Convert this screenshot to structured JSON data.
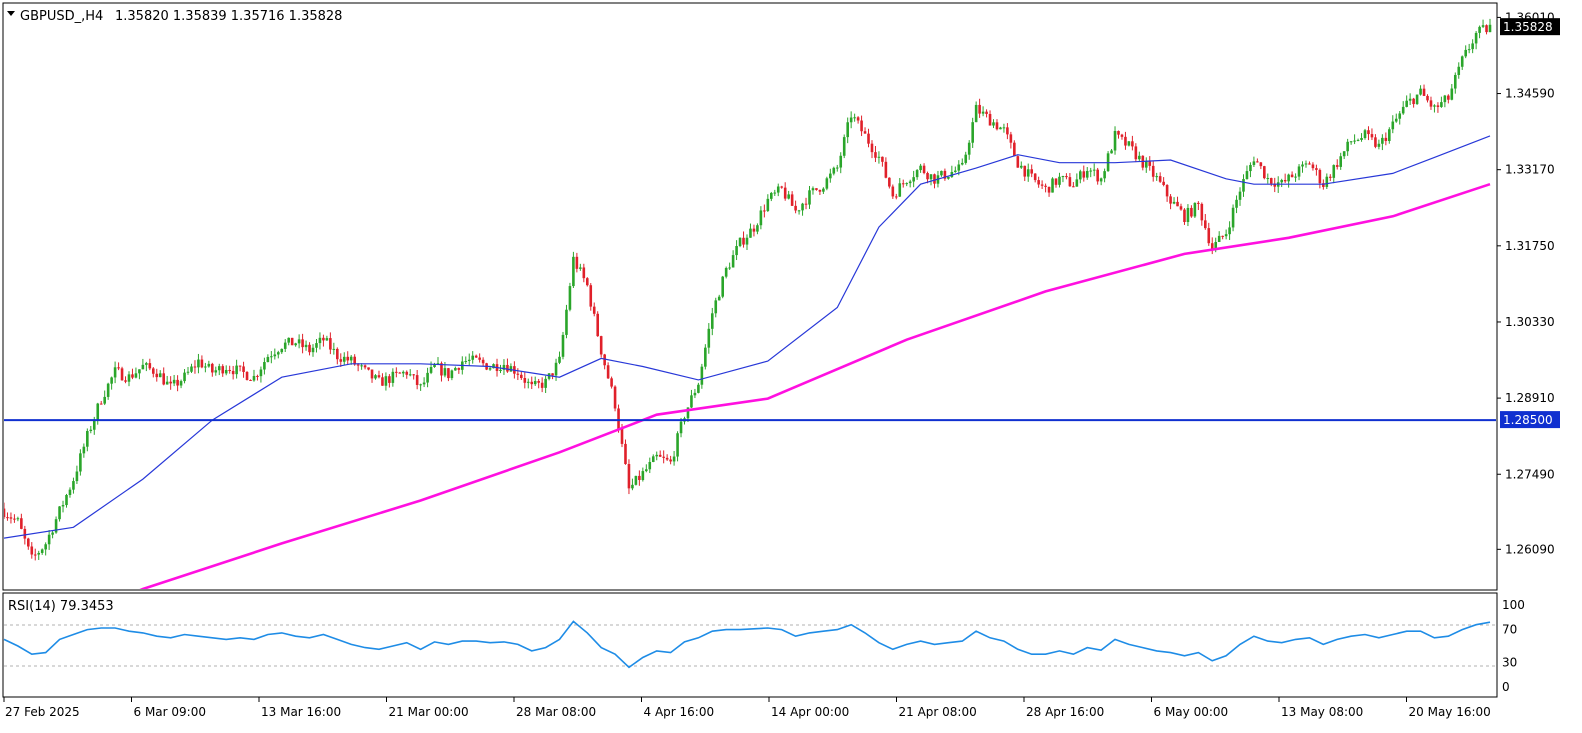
{
  "header": {
    "symbol": "GBPUSD_,H4",
    "ohlc": "1.35820 1.35839 1.35716 1.35828"
  },
  "rsi_header": {
    "label": "RSI(14) 79.3453"
  },
  "colors": {
    "bull_candle": "#2aa52a",
    "bear_candle": "#e0202a",
    "ma_fast": "#2838d8",
    "ma_slow": "#ff10e0",
    "support_line": "#1030d0",
    "rsi_line": "#1e8ce6",
    "price_tag_bg": "#000000",
    "level_tag_bg": "#1030d0"
  },
  "chart_data": [
    {
      "type": "candlestick",
      "symbol": "GBPUSD_",
      "timeframe": "H4",
      "y_ticks": [
        "1.36010",
        "1.34590",
        "1.33170",
        "1.31750",
        "1.30330",
        "1.28910",
        "1.27490",
        "1.26090"
      ],
      "ylim": [
        1.2535,
        1.3626
      ],
      "x_tick_labels": [
        "27 Feb 2025",
        "6 Mar 09:00",
        "13 Mar 16:00",
        "21 Mar 00:00",
        "28 Mar 08:00",
        "4 Apr 16:00",
        "14 Apr 00:00",
        "21 Apr 08:00",
        "28 Apr 16:00",
        "6 May 00:00",
        "13 May 08:00",
        "20 May 16:00"
      ],
      "current_price_label": "1.35828",
      "horizontal_level": {
        "value": 1.285,
        "label": "1.28500"
      },
      "close_path": [
        [
          0,
          1.268
        ],
        [
          4,
          1.266
        ],
        [
          8,
          1.259
        ],
        [
          12,
          1.262
        ],
        [
          16,
          1.268
        ],
        [
          20,
          1.274
        ],
        [
          24,
          1.282
        ],
        [
          28,
          1.289
        ],
        [
          32,
          1.294
        ],
        [
          36,
          1.293
        ],
        [
          40,
          1.295
        ],
        [
          44,
          1.294
        ],
        [
          48,
          1.291
        ],
        [
          52,
          1.293
        ],
        [
          56,
          1.296
        ],
        [
          60,
          1.294
        ],
        [
          64,
          1.295
        ],
        [
          68,
          1.294
        ],
        [
          72,
          1.293
        ],
        [
          76,
          1.297
        ],
        [
          80,
          1.299
        ],
        [
          84,
          1.2995
        ],
        [
          88,
          1.298
        ],
        [
          92,
          1.3
        ],
        [
          96,
          1.297
        ],
        [
          100,
          1.296
        ],
        [
          104,
          1.294
        ],
        [
          108,
          1.292
        ],
        [
          112,
          1.293
        ],
        [
          116,
          1.294
        ],
        [
          120,
          1.291
        ],
        [
          124,
          1.295
        ],
        [
          128,
          1.2935
        ],
        [
          132,
          1.296
        ],
        [
          136,
          1.296
        ],
        [
          140,
          1.295
        ],
        [
          144,
          1.2955
        ],
        [
          148,
          1.294
        ],
        [
          152,
          1.291
        ],
        [
          156,
          1.292
        ],
        [
          160,
          1.296
        ],
        [
          164,
          1.315
        ],
        [
          168,
          1.31
        ],
        [
          172,
          1.298
        ],
        [
          176,
          1.288
        ],
        [
          180,
          1.272
        ],
        [
          184,
          1.275
        ],
        [
          188,
          1.278
        ],
        [
          192,
          1.277
        ],
        [
          196,
          1.286
        ],
        [
          200,
          1.292
        ],
        [
          204,
          1.305
        ],
        [
          208,
          1.313
        ],
        [
          212,
          1.318
        ],
        [
          216,
          1.321
        ],
        [
          220,
          1.326
        ],
        [
          224,
          1.328
        ],
        [
          228,
          1.324
        ],
        [
          232,
          1.327
        ],
        [
          236,
          1.329
        ],
        [
          240,
          1.332
        ],
        [
          244,
          1.342
        ],
        [
          248,
          1.338
        ],
        [
          252,
          1.334
        ],
        [
          256,
          1.327
        ],
        [
          260,
          1.33
        ],
        [
          264,
          1.332
        ],
        [
          268,
          1.33
        ],
        [
          272,
          1.331
        ],
        [
          276,
          1.332
        ],
        [
          280,
          1.343
        ],
        [
          284,
          1.341
        ],
        [
          288,
          1.339
        ],
        [
          292,
          1.333
        ],
        [
          296,
          1.33
        ],
        [
          300,
          1.328
        ],
        [
          304,
          1.33
        ],
        [
          308,
          1.329
        ],
        [
          312,
          1.332
        ],
        [
          316,
          1.33
        ],
        [
          320,
          1.338
        ],
        [
          324,
          1.336
        ],
        [
          328,
          1.333
        ],
        [
          332,
          1.33
        ],
        [
          336,
          1.326
        ],
        [
          340,
          1.323
        ],
        [
          344,
          1.325
        ],
        [
          348,
          1.317
        ],
        [
          352,
          1.32
        ],
        [
          356,
          1.328
        ],
        [
          360,
          1.334
        ],
        [
          364,
          1.33
        ],
        [
          368,
          1.329
        ],
        [
          372,
          1.331
        ],
        [
          376,
          1.333
        ],
        [
          380,
          1.329
        ],
        [
          384,
          1.333
        ],
        [
          388,
          1.337
        ],
        [
          392,
          1.338
        ],
        [
          396,
          1.336
        ],
        [
          400,
          1.34
        ],
        [
          404,
          1.344
        ],
        [
          408,
          1.346
        ],
        [
          412,
          1.343
        ],
        [
          416,
          1.345
        ],
        [
          420,
          1.352
        ],
        [
          424,
          1.357
        ],
        [
          428,
          1.3583
        ]
      ],
      "series": [
        {
          "name": "",
          "type": "line",
          "values": [
            [
              0,
              1.263
            ],
            [
              20,
              1.265
            ],
            [
              40,
              1.274
            ],
            [
              60,
              1.285
            ],
            [
              80,
              1.293
            ],
            [
              100,
              1.2955
            ],
            [
              120,
              1.2955
            ],
            [
              140,
              1.295
            ],
            [
              160,
              1.293
            ],
            [
              172,
              1.2965
            ],
            [
              184,
              1.295
            ],
            [
              200,
              1.2925
            ],
            [
              220,
              1.296
            ],
            [
              240,
              1.306
            ],
            [
              252,
              1.321
            ],
            [
              264,
              1.329
            ],
            [
              280,
              1.332
            ],
            [
              292,
              1.3345
            ],
            [
              304,
              1.333
            ],
            [
              320,
              1.333
            ],
            [
              336,
              1.3335
            ],
            [
              352,
              1.33
            ],
            [
              360,
              1.329
            ],
            [
              380,
              1.329
            ],
            [
              400,
              1.331
            ],
            [
              412,
              1.334
            ],
            [
              428,
              1.338
            ]
          ]
        },
        {
          "name": "",
          "type": "line",
          "values": [
            [
              0,
              1.243
            ],
            [
              40,
              1.2535
            ],
            [
              80,
              1.262
            ],
            [
              120,
              1.27
            ],
            [
              160,
              1.279
            ],
            [
              188,
              1.286
            ],
            [
              220,
              1.289
            ],
            [
              260,
              1.3
            ],
            [
              300,
              1.309
            ],
            [
              340,
              1.316
            ],
            [
              370,
              1.319
            ],
            [
              400,
              1.323
            ],
            [
              428,
              1.329
            ]
          ]
        }
      ]
    },
    {
      "type": "line",
      "title": "RSI(14) 79.3453",
      "y_ticks": [
        "100",
        "70",
        "30",
        "0"
      ],
      "ylim": [
        0,
        100
      ],
      "levels": [
        70,
        30
      ],
      "values": [
        [
          0,
          58
        ],
        [
          4,
          50
        ],
        [
          8,
          40
        ],
        [
          12,
          42
        ],
        [
          16,
          58
        ],
        [
          20,
          64
        ],
        [
          24,
          70
        ],
        [
          28,
          72
        ],
        [
          32,
          72
        ],
        [
          36,
          68
        ],
        [
          40,
          66
        ],
        [
          44,
          62
        ],
        [
          48,
          60
        ],
        [
          52,
          64
        ],
        [
          56,
          62
        ],
        [
          60,
          60
        ],
        [
          64,
          58
        ],
        [
          68,
          60
        ],
        [
          72,
          58
        ],
        [
          76,
          64
        ],
        [
          80,
          66
        ],
        [
          84,
          62
        ],
        [
          88,
          60
        ],
        [
          92,
          64
        ],
        [
          96,
          58
        ],
        [
          100,
          52
        ],
        [
          104,
          48
        ],
        [
          108,
          46
        ],
        [
          112,
          50
        ],
        [
          116,
          54
        ],
        [
          120,
          46
        ],
        [
          124,
          55
        ],
        [
          128,
          52
        ],
        [
          132,
          56
        ],
        [
          136,
          56
        ],
        [
          140,
          54
        ],
        [
          144,
          55
        ],
        [
          148,
          52
        ],
        [
          152,
          44
        ],
        [
          156,
          48
        ],
        [
          160,
          58
        ],
        [
          164,
          80
        ],
        [
          168,
          66
        ],
        [
          172,
          48
        ],
        [
          176,
          40
        ],
        [
          180,
          24
        ],
        [
          184,
          36
        ],
        [
          188,
          44
        ],
        [
          192,
          42
        ],
        [
          196,
          55
        ],
        [
          200,
          60
        ],
        [
          204,
          68
        ],
        [
          208,
          70
        ],
        [
          212,
          70
        ],
        [
          216,
          71
        ],
        [
          220,
          72
        ],
        [
          224,
          70
        ],
        [
          228,
          62
        ],
        [
          232,
          66
        ],
        [
          236,
          68
        ],
        [
          240,
          70
        ],
        [
          244,
          76
        ],
        [
          248,
          66
        ],
        [
          252,
          54
        ],
        [
          256,
          46
        ],
        [
          260,
          52
        ],
        [
          264,
          56
        ],
        [
          268,
          52
        ],
        [
          272,
          54
        ],
        [
          276,
          56
        ],
        [
          280,
          68
        ],
        [
          284,
          60
        ],
        [
          288,
          56
        ],
        [
          292,
          46
        ],
        [
          296,
          40
        ],
        [
          300,
          40
        ],
        [
          304,
          44
        ],
        [
          308,
          40
        ],
        [
          312,
          48
        ],
        [
          316,
          45
        ],
        [
          320,
          58
        ],
        [
          324,
          52
        ],
        [
          328,
          48
        ],
        [
          332,
          44
        ],
        [
          336,
          42
        ],
        [
          340,
          38
        ],
        [
          344,
          42
        ],
        [
          348,
          32
        ],
        [
          352,
          38
        ],
        [
          356,
          52
        ],
        [
          360,
          62
        ],
        [
          364,
          56
        ],
        [
          368,
          54
        ],
        [
          372,
          58
        ],
        [
          376,
          60
        ],
        [
          380,
          52
        ],
        [
          384,
          58
        ],
        [
          388,
          62
        ],
        [
          392,
          64
        ],
        [
          396,
          60
        ],
        [
          400,
          64
        ],
        [
          404,
          68
        ],
        [
          408,
          68
        ],
        [
          412,
          60
        ],
        [
          416,
          62
        ],
        [
          420,
          70
        ],
        [
          424,
          76
        ],
        [
          428,
          79
        ]
      ]
    }
  ]
}
